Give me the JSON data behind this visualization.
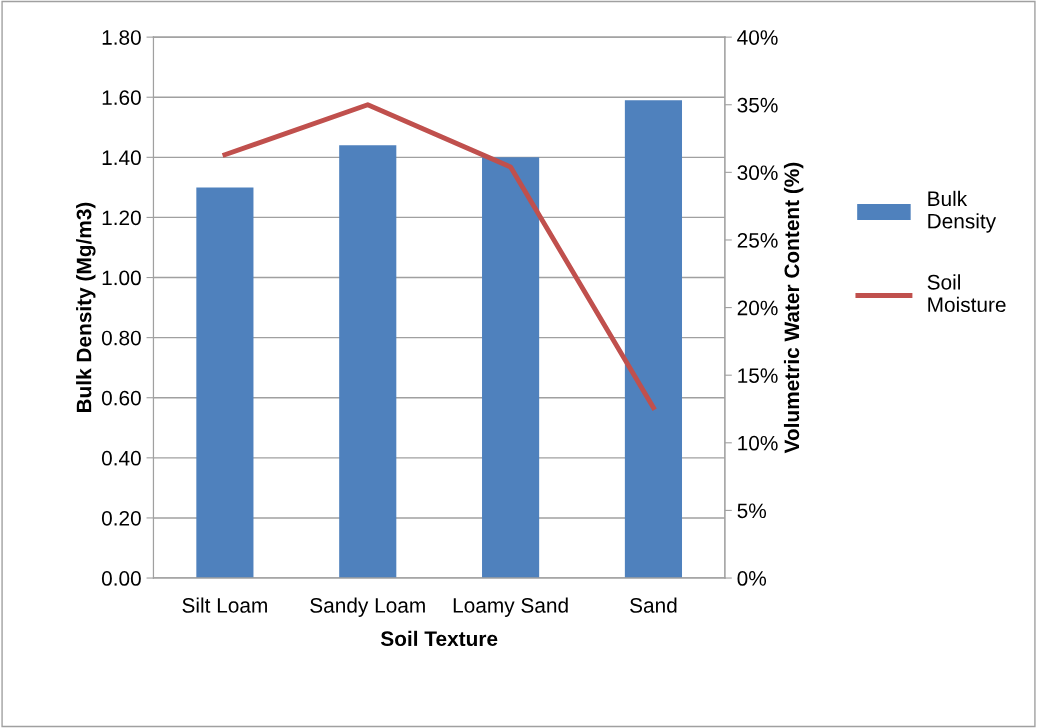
{
  "chart_data": {
    "type": "bar",
    "xlabel": "Soil Texture",
    "ylabel": "Bulk Density (Mg/m3)",
    "y2label": "Volumetric Water Content (%)",
    "categories": [
      "Silt Loam",
      "Sandy Loam",
      "Loamy Sand",
      "Sand"
    ],
    "series": [
      {
        "name": "Bulk Density",
        "color": "#4f81bd",
        "values": [
          1.3,
          1.44,
          1.4,
          1.59
        ]
      },
      {
        "name": "Soil Moisture",
        "type": "line",
        "axis": "y2",
        "color": "#c0504d",
        "values": [
          31.3,
          35.0,
          30.4,
          12.6
        ]
      }
    ],
    "ylim": [
      0,
      1.8
    ],
    "yticks": [
      {
        "value": 0,
        "label": "0.00"
      },
      {
        "value": 0.2,
        "label": "0.20"
      },
      {
        "value": 0.4,
        "label": "0.40"
      },
      {
        "value": 0.6,
        "label": "0.60"
      },
      {
        "value": 0.8,
        "label": "0.80"
      },
      {
        "value": 1.0,
        "label": "1.00"
      },
      {
        "value": 1.2,
        "label": "1.20"
      },
      {
        "value": 1.4,
        "label": "1.40"
      },
      {
        "value": 1.6,
        "label": "1.60"
      },
      {
        "value": 1.8,
        "label": "1.80"
      }
    ],
    "y2lim": [
      0,
      40
    ],
    "y2ticks": [
      {
        "value": 0,
        "label": "0%"
      },
      {
        "value": 5,
        "label": "5%"
      },
      {
        "value": 10,
        "label": "10%"
      },
      {
        "value": 15,
        "label": "15%"
      },
      {
        "value": 20,
        "label": "20%"
      },
      {
        "value": 25,
        "label": "25%"
      },
      {
        "value": 30,
        "label": "30%"
      },
      {
        "value": 35,
        "label": "35%"
      },
      {
        "value": 40,
        "label": "40%"
      }
    ],
    "grid": "y",
    "legend": "right",
    "marker": "none",
    "line_style": "solid"
  }
}
